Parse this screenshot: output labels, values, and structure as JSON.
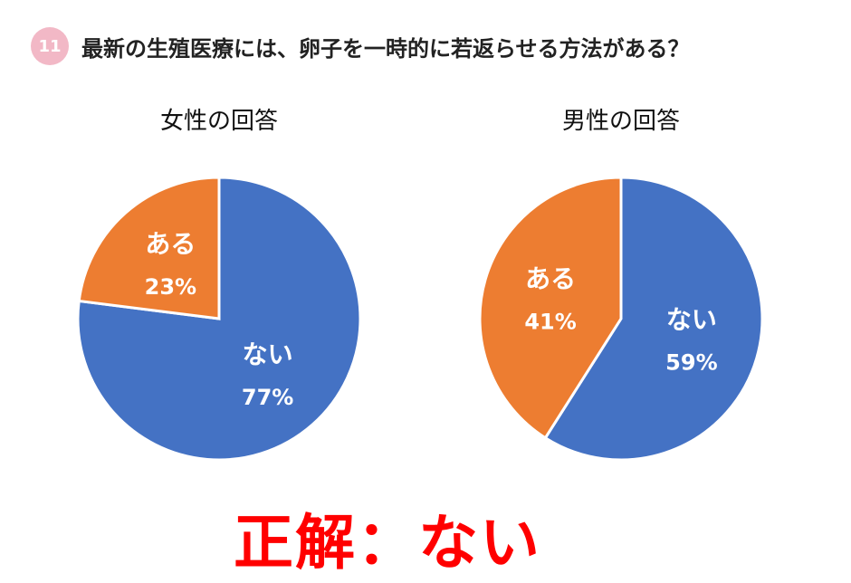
{
  "header": {
    "number": "11",
    "question": "最新の生殖医療には、卵子を一時的に若返らせる方法がある？"
  },
  "answer": "正解：ない",
  "colors": {
    "blue": "#4472c4",
    "orange": "#ed7d31",
    "badge": "#f2b8c6",
    "answer": "#ff0000"
  },
  "chart_data": [
    {
      "type": "pie",
      "title": "女性の回答",
      "slices": [
        {
          "label": "ない",
          "value": 77,
          "display": "77%",
          "color": "#4472c4"
        },
        {
          "label": "ある",
          "value": 23,
          "display": "23%",
          "color": "#ed7d31"
        }
      ]
    },
    {
      "type": "pie",
      "title": "男性の回答",
      "slices": [
        {
          "label": "ない",
          "value": 59,
          "display": "59%",
          "color": "#4472c4"
        },
        {
          "label": "ある",
          "value": 41,
          "display": "41%",
          "color": "#ed7d31"
        }
      ]
    }
  ]
}
